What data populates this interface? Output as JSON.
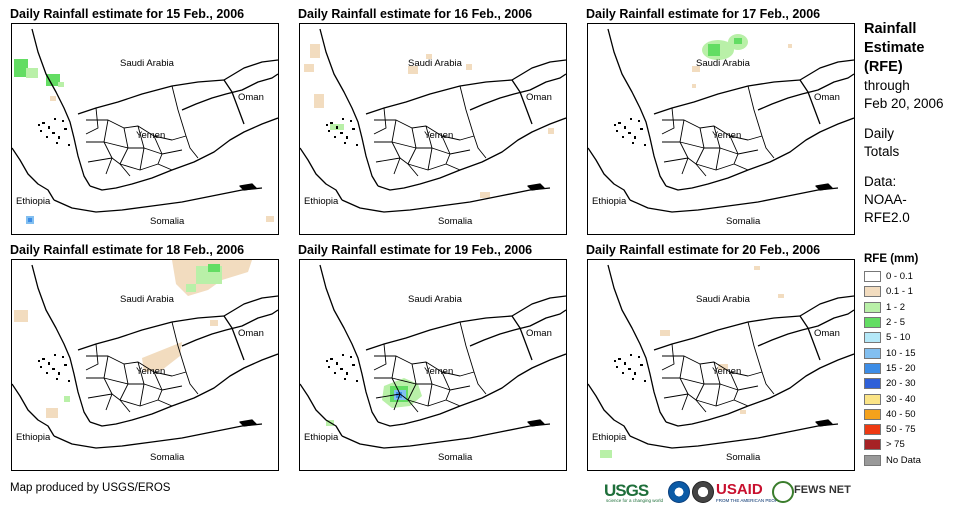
{
  "panels": [
    {
      "title": "Daily Rainfall estimate for 15 Feb., 2006"
    },
    {
      "title": "Daily Rainfall estimate for 16 Feb., 2006"
    },
    {
      "title": "Daily Rainfall estimate for 17 Feb., 2006"
    },
    {
      "title": "Daily Rainfall estimate for 18 Feb., 2006"
    },
    {
      "title": "Daily Rainfall estimate for 19 Feb., 2006"
    },
    {
      "title": "Daily Rainfall estimate for 20 Feb., 2006"
    }
  ],
  "map_labels": {
    "saudi": "Saudi Arabia",
    "oman": "Oman",
    "yemen": "Yemen",
    "ethiopia": "Ethiopia",
    "somalia": "Somalia"
  },
  "sidebar": {
    "title_lines": [
      "Rainfall",
      "Estimate",
      "(RFE)"
    ],
    "through": "through",
    "date": "Feb 20, 2006",
    "daily": "Daily",
    "totals": "Totals",
    "data_label": "Data:",
    "data_src1": "NOAA-",
    "data_src2": "RFE2.0"
  },
  "legend": {
    "title": "RFE (mm)",
    "items": [
      {
        "label": "0 - 0.1",
        "color": "#ffffff"
      },
      {
        "label": "0.1 - 1",
        "color": "#f2dcbf"
      },
      {
        "label": "1 - 2",
        "color": "#b9f0a8"
      },
      {
        "label": "2 - 5",
        "color": "#63dd63"
      },
      {
        "label": "5 - 10",
        "color": "#b4e8f8"
      },
      {
        "label": "10 - 15",
        "color": "#82bff0"
      },
      {
        "label": "15 - 20",
        "color": "#3d8de6"
      },
      {
        "label": "20 - 30",
        "color": "#2f60d8"
      },
      {
        "label": "30 - 40",
        "color": "#fbe486"
      },
      {
        "label": "40 - 50",
        "color": "#f5a21c"
      },
      {
        "label": "50 - 75",
        "color": "#ee3a12"
      },
      {
        "label": "> 75",
        "color": "#a62225"
      },
      {
        "label": "No Data",
        "color": "#999999"
      }
    ]
  },
  "footer": {
    "credit": "Map produced by USGS/EROS",
    "logos": [
      "USGS",
      "NOAA",
      "DOI",
      "USAID",
      "FEWS NET"
    ],
    "usgs_tagline": "science for a changing world",
    "usaid_tagline": "FROM THE AMERICAN PEOPLE"
  }
}
